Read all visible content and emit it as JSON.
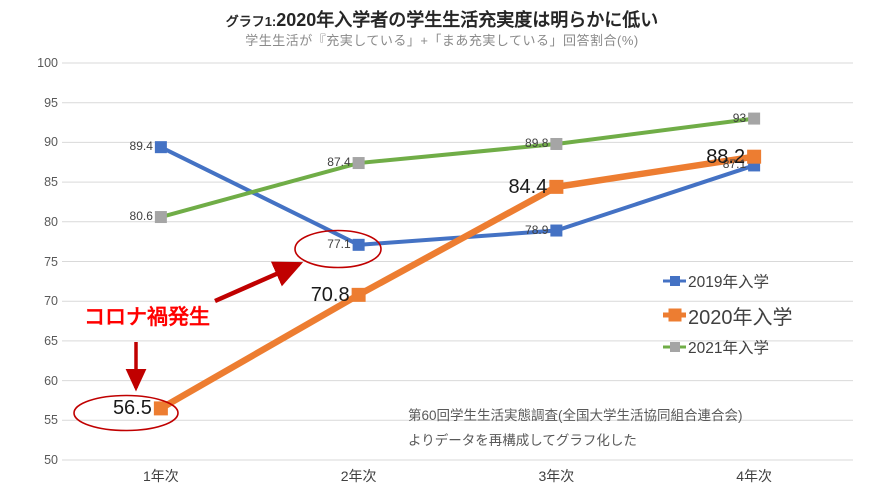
{
  "header": {
    "title_prefix": "グラフ1:",
    "title_main": "2020年入学者の学生生活充実度は明らかに低い",
    "subtitle": "学生生活が『充実している」+「まあ充実している」回答割合(%)"
  },
  "annotation": {
    "covid_label": "コロナ禍発生"
  },
  "source": {
    "line1": "第60回学生生活実態調査(全国大学生活協同組合連合会)",
    "line2": "よりデータを再構成してグラフ化した"
  },
  "colors": {
    "grid": "#D9D9D9",
    "axis_text": "#595959",
    "annotation_red": "#C00000",
    "covid_text_red": "#FF0000"
  },
  "chart_data": {
    "type": "line",
    "title": "グラフ1:2020年入学者の学生生活充実度は明らかに低い",
    "subtitle": "学生生活が『充実している」+「まあ充実している」回答割合(%)",
    "categories": [
      "1年次",
      "2年次",
      "3年次",
      "4年次"
    ],
    "series": [
      {
        "name": "2019年入学",
        "values": [
          89.4,
          77.1,
          78.9,
          87.1
        ],
        "color": "#4472C4",
        "marker_color": "#4472C4",
        "emphasis": false
      },
      {
        "name": "2020年入学",
        "values": [
          56.5,
          70.8,
          84.4,
          88.2
        ],
        "color": "#ED7D31",
        "marker_color": "#ED7D31",
        "emphasis": true
      },
      {
        "name": "2021年入学",
        "values": [
          80.6,
          87.4,
          89.8,
          93
        ],
        "color": "#70AD47",
        "marker_color": "#A5A5A5",
        "emphasis": false
      }
    ],
    "ylim": [
      50,
      100
    ],
    "ytick_step": 5,
    "grid": true,
    "legend_position": "middle-right",
    "annotations": [
      {
        "text": "コロナ禍発生",
        "targets": [
          "2019年入学@2年次=77.1",
          "2020年入学@1年次=56.5"
        ]
      }
    ]
  }
}
